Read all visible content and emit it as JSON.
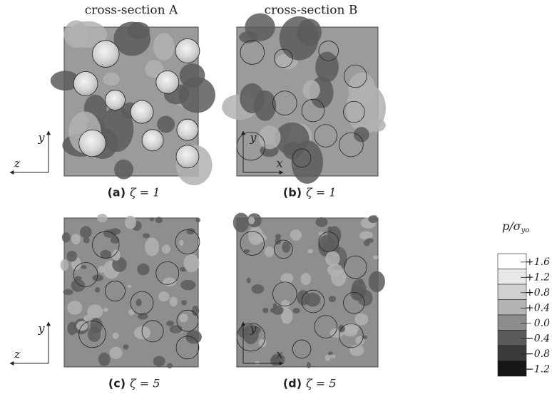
{
  "figure": {
    "column_headers": [
      "cross-section A",
      "cross-section B"
    ],
    "panels": [
      {
        "label": "(a)",
        "caption": "ζ = 1",
        "axes": [
          "z",
          "y"
        ]
      },
      {
        "label": "(b)",
        "caption": "ζ = 1",
        "axes": [
          "x",
          "y"
        ]
      },
      {
        "label": "(c)",
        "caption": "ζ = 5",
        "axes": [
          "z",
          "y"
        ]
      },
      {
        "label": "(d)",
        "caption": "ζ = 5",
        "axes": [
          "x",
          "y"
        ]
      }
    ],
    "colorbar": {
      "title": "p/σ",
      "title_subscript": "yo",
      "tick_labels": [
        "+1.6",
        "+1.2",
        "+0.8",
        "+0.4",
        "0.0",
        "−0.4",
        "−0.8",
        "−1.2"
      ]
    }
  }
}
